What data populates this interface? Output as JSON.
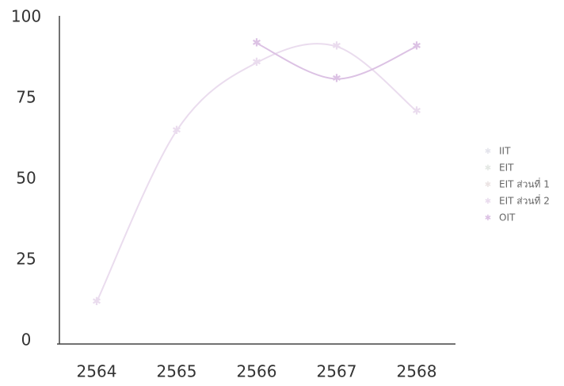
{
  "chart_data": {
    "type": "line",
    "categories": [
      "2564",
      "2565",
      "2566",
      "2567",
      "2568"
    ],
    "series": [
      {
        "name": "IIT",
        "color": "#e4e4ec",
        "values": [
          null,
          null,
          null,
          null,
          null
        ]
      },
      {
        "name": "EIT",
        "color": "#e4e8e4",
        "values": [
          null,
          null,
          null,
          null,
          null
        ]
      },
      {
        "name": "EIT ส่วนที่ 1",
        "color": "#ece4e4",
        "values": [
          null,
          null,
          null,
          null,
          null
        ]
      },
      {
        "name": "EIT ส่วนที่ 2",
        "color": "#eadcee",
        "values": [
          12,
          65,
          86,
          91,
          71
        ]
      },
      {
        "name": "OIT",
        "color": "#dcc2e4",
        "values": [
          null,
          null,
          92,
          81,
          91
        ]
      }
    ],
    "ylim": [
      0,
      100
    ],
    "yticks": [
      0,
      25,
      50,
      75,
      100
    ],
    "legend": "right"
  }
}
